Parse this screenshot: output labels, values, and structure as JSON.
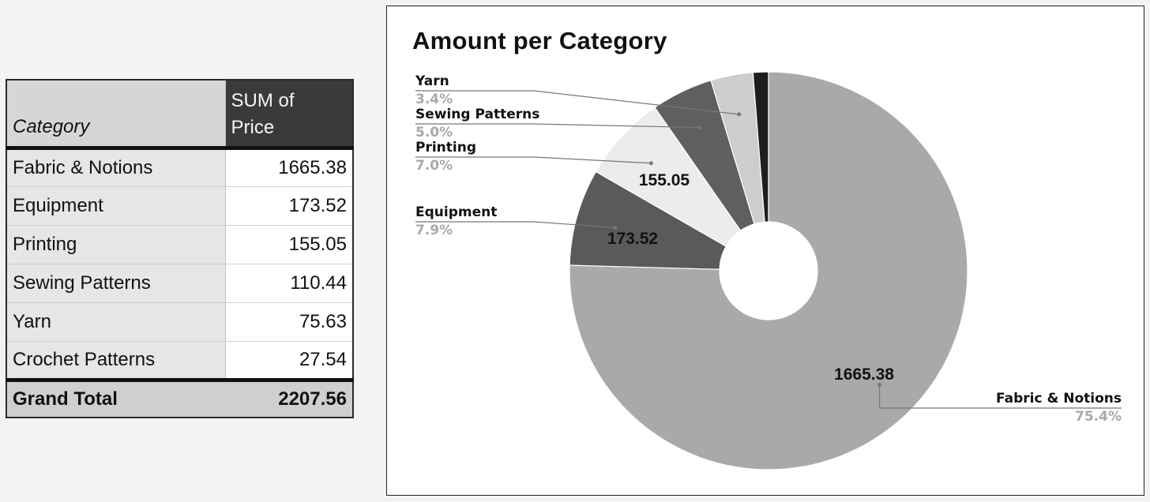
{
  "table": {
    "header": {
      "category": "Category",
      "sum_line1": "SUM of",
      "sum_line2": "Price"
    },
    "rows": [
      {
        "category": "Fabric & Notions",
        "value": "1665.38"
      },
      {
        "category": "Equipment",
        "value": "173.52"
      },
      {
        "category": "Printing",
        "value": "155.05"
      },
      {
        "category": "Sewing Patterns",
        "value": "110.44"
      },
      {
        "category": "Yarn",
        "value": "75.63"
      },
      {
        "category": "Crochet Patterns",
        "value": "27.54"
      }
    ],
    "total": {
      "label": "Grand Total",
      "value": "2207.56"
    }
  },
  "chart_data": {
    "type": "pie",
    "title": "Amount per Category",
    "donut": true,
    "slices": [
      {
        "name": "Fabric & Notions",
        "value": 1665.38,
        "percent": "75.4%",
        "label": "1665.38",
        "legend": true,
        "color": "#a9a9a9"
      },
      {
        "name": "Equipment",
        "value": 173.52,
        "percent": "7.9%",
        "label": "173.52",
        "legend": true,
        "color": "#5a5a5a"
      },
      {
        "name": "Printing",
        "value": 155.05,
        "percent": "7.0%",
        "label": "155.05",
        "legend": true,
        "color": "#ececec"
      },
      {
        "name": "Sewing Patterns",
        "value": 110.44,
        "percent": "5.0%",
        "label": "",
        "legend": true,
        "color": "#5f5f5f"
      },
      {
        "name": "Yarn",
        "value": 75.63,
        "percent": "3.4%",
        "label": "",
        "legend": true,
        "color": "#cdcdcd"
      },
      {
        "name": "Crochet Patterns",
        "value": 27.54,
        "percent": "",
        "label": "",
        "legend": false,
        "color": "#1e1e1e"
      }
    ]
  }
}
